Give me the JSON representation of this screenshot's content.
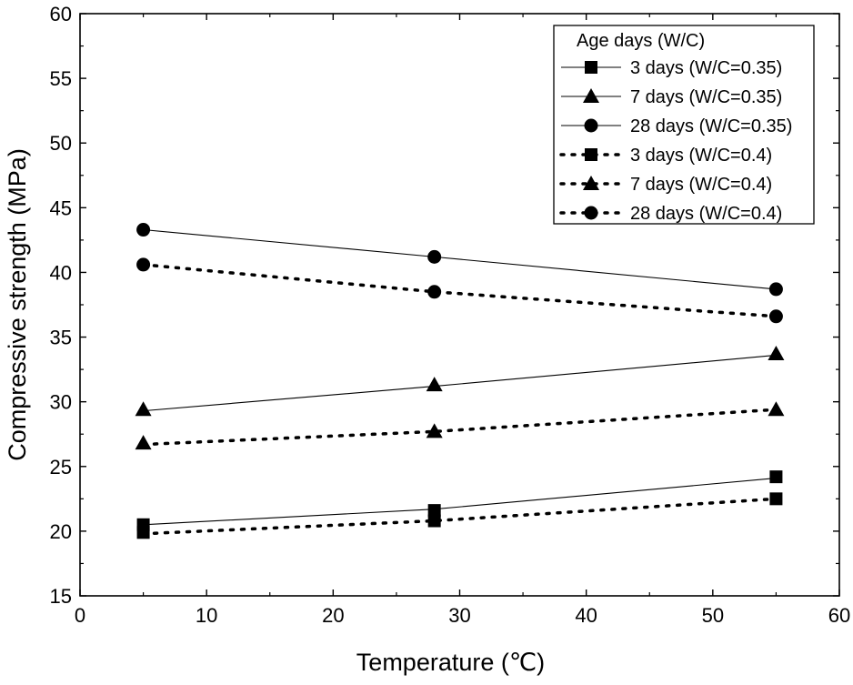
{
  "chart_data": {
    "type": "line",
    "title": "",
    "xlabel": "Temperature (℃)",
    "ylabel": "Compressive strength (MPa)",
    "xlim": [
      0,
      60
    ],
    "ylim": [
      15,
      60
    ],
    "xticks": [
      0,
      10,
      20,
      30,
      40,
      50,
      60
    ],
    "yticks": [
      15,
      20,
      25,
      30,
      35,
      40,
      45,
      50,
      55,
      60
    ],
    "grid": false,
    "legend_placement": "top-right",
    "legend_title": "Age days (W/C)",
    "x": [
      5,
      28,
      55
    ],
    "series": [
      {
        "name": "3 days (W/C=0.35)",
        "marker": "square",
        "line_style": "solid",
        "values": [
          20.5,
          21.6,
          24.2
        ],
        "fit": [
          20.5,
          21.7,
          24.1
        ]
      },
      {
        "name": "7 days (W/C=0.35)",
        "marker": "triangle",
        "line_style": "solid",
        "values": [
          29.4,
          31.3,
          33.7
        ],
        "fit": [
          29.3,
          31.2,
          33.6
        ]
      },
      {
        "name": "28 days (W/C=0.35)",
        "marker": "circle",
        "line_style": "solid",
        "values": [
          43.3,
          41.2,
          38.7
        ],
        "fit": [
          43.3,
          41.2,
          38.7
        ]
      },
      {
        "name": "3 days (W/C=0.4)",
        "marker": "square",
        "line_style": "dotted",
        "values": [
          19.9,
          20.8,
          22.5
        ],
        "fit": [
          19.8,
          20.8,
          22.5
        ]
      },
      {
        "name": "7 days (W/C=0.4)",
        "marker": "triangle",
        "line_style": "dotted",
        "values": [
          26.8,
          27.7,
          29.4
        ],
        "fit": [
          26.7,
          27.7,
          29.4
        ]
      },
      {
        "name": "28 days (W/C=0.4)",
        "marker": "circle",
        "line_style": "dotted",
        "values": [
          40.6,
          38.5,
          36.6
        ],
        "fit": [
          40.6,
          38.5,
          36.6
        ]
      }
    ],
    "colors": {
      "line": "#000000",
      "background": "#ffffff"
    }
  }
}
